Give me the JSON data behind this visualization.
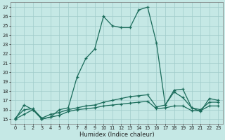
{
  "xlabel": "Humidex (Indice chaleur)",
  "background_color": "#c5e8e5",
  "grid_color": "#a0ccca",
  "line_color": "#1a6b5a",
  "xlim_min": -0.5,
  "xlim_max": 23.5,
  "ylim_min": 14.5,
  "ylim_max": 27.5,
  "yticks": [
    15,
    16,
    17,
    18,
    19,
    20,
    21,
    22,
    23,
    24,
    25,
    26,
    27
  ],
  "xticks": [
    0,
    1,
    2,
    3,
    4,
    5,
    6,
    7,
    8,
    9,
    10,
    11,
    12,
    13,
    14,
    15,
    16,
    17,
    18,
    19,
    20,
    21,
    22,
    23
  ],
  "line1_x": [
    0,
    1,
    2,
    3,
    4,
    5,
    6,
    7,
    8,
    9,
    10,
    11,
    12,
    13,
    14,
    15,
    16,
    17,
    18,
    19,
    20,
    21,
    22,
    23
  ],
  "line1_y": [
    15,
    16.5,
    16,
    15,
    15.2,
    16,
    16.2,
    19.5,
    21.5,
    22.5,
    26.0,
    25.0,
    24.8,
    24.8,
    26.7,
    27.0,
    23.2,
    16.5,
    18.1,
    18.2,
    16.2,
    15.8,
    17.2,
    17.0
  ],
  "line2_x": [
    0,
    1,
    2,
    3,
    4,
    5,
    6,
    7,
    8,
    9,
    10,
    11,
    12,
    13,
    14,
    15,
    16,
    17,
    18,
    19,
    20,
    21,
    22,
    23
  ],
  "line2_y": [
    15.1,
    16.0,
    16.1,
    15.1,
    15.5,
    15.7,
    16.0,
    16.2,
    16.4,
    16.5,
    16.8,
    17.0,
    17.2,
    17.4,
    17.5,
    17.6,
    16.3,
    16.5,
    17.9,
    17.3,
    16.2,
    16.0,
    16.8,
    16.8
  ],
  "line3_x": [
    0,
    1,
    2,
    3,
    4,
    5,
    6,
    7,
    8,
    9,
    10,
    11,
    12,
    13,
    14,
    15,
    16,
    17,
    18,
    19,
    20,
    21,
    22,
    23
  ],
  "line3_y": [
    15.0,
    15.5,
    16.0,
    15.0,
    15.2,
    15.4,
    15.8,
    16.0,
    16.1,
    16.2,
    16.4,
    16.5,
    16.6,
    16.7,
    16.8,
    16.9,
    16.1,
    16.2,
    16.4,
    16.4,
    15.9,
    15.9,
    16.4,
    16.4
  ]
}
